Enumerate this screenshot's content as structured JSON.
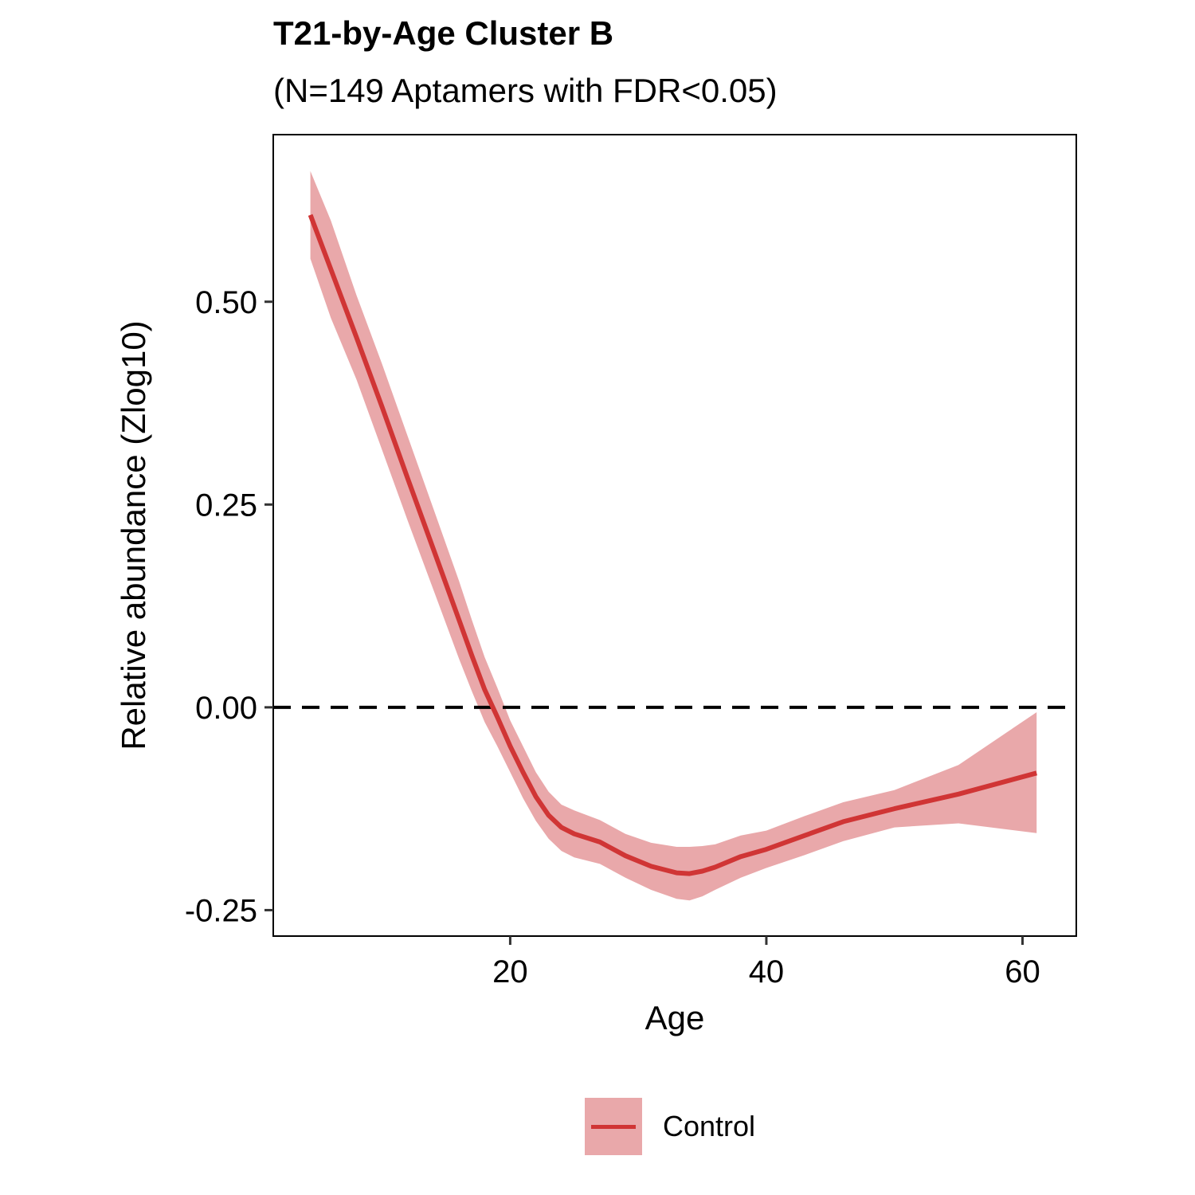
{
  "chart_data": {
    "type": "line",
    "title": "T21-by-Age Cluster B",
    "subtitle": "(N=149 Aptamers with FDR<0.05)",
    "xlabel": "Age",
    "ylabel": "Relative abundance (Zlog10)",
    "xlim": [
      1.5,
      64.2
    ],
    "ylim": [
      -0.282,
      0.706
    ],
    "x_ticks": [
      20,
      40,
      60
    ],
    "x_tick_labels": [
      "20",
      "40",
      "60"
    ],
    "y_ticks": [
      0.5,
      0.25,
      0.0,
      -0.25
    ],
    "y_tick_labels": [
      "0.50",
      "0.25",
      "0.00",
      "-0.25"
    ],
    "grid": false,
    "reference_line": {
      "y": 0,
      "style": "dashed",
      "color": "#000000"
    },
    "legend_position": "bottom",
    "series": [
      {
        "name": "Control",
        "color": "#d03535",
        "ribbon_color": "#e9a8aa",
        "x": [
          4.4,
          6,
          8,
          10,
          12,
          14,
          16,
          17,
          18,
          19,
          20,
          21,
          22,
          23,
          24,
          25,
          27,
          29,
          31,
          33,
          34,
          35,
          36,
          38,
          40,
          43,
          46,
          50,
          55,
          61.1
        ],
        "y": [
          0.607,
          0.54,
          0.456,
          0.37,
          0.282,
          0.195,
          0.108,
          0.064,
          0.022,
          -0.012,
          -0.048,
          -0.08,
          -0.11,
          -0.133,
          -0.148,
          -0.156,
          -0.166,
          -0.183,
          -0.196,
          -0.204,
          -0.205,
          -0.202,
          -0.197,
          -0.184,
          -0.175,
          -0.158,
          -0.141,
          -0.125,
          -0.107,
          -0.081
        ],
        "lower": [
          0.553,
          0.48,
          0.404,
          0.317,
          0.23,
          0.145,
          0.06,
          0.02,
          -0.018,
          -0.048,
          -0.08,
          -0.112,
          -0.14,
          -0.162,
          -0.177,
          -0.185,
          -0.193,
          -0.21,
          -0.225,
          -0.236,
          -0.238,
          -0.233,
          -0.225,
          -0.21,
          -0.198,
          -0.182,
          -0.165,
          -0.148,
          -0.143,
          -0.155
        ],
        "upper": [
          0.661,
          0.6,
          0.508,
          0.423,
          0.334,
          0.245,
          0.156,
          0.108,
          0.062,
          0.024,
          -0.016,
          -0.048,
          -0.08,
          -0.104,
          -0.12,
          -0.127,
          -0.139,
          -0.156,
          -0.167,
          -0.172,
          -0.172,
          -0.171,
          -0.169,
          -0.158,
          -0.152,
          -0.134,
          -0.117,
          -0.102,
          -0.071,
          -0.006
        ]
      }
    ]
  },
  "legend": {
    "label": "Control"
  }
}
